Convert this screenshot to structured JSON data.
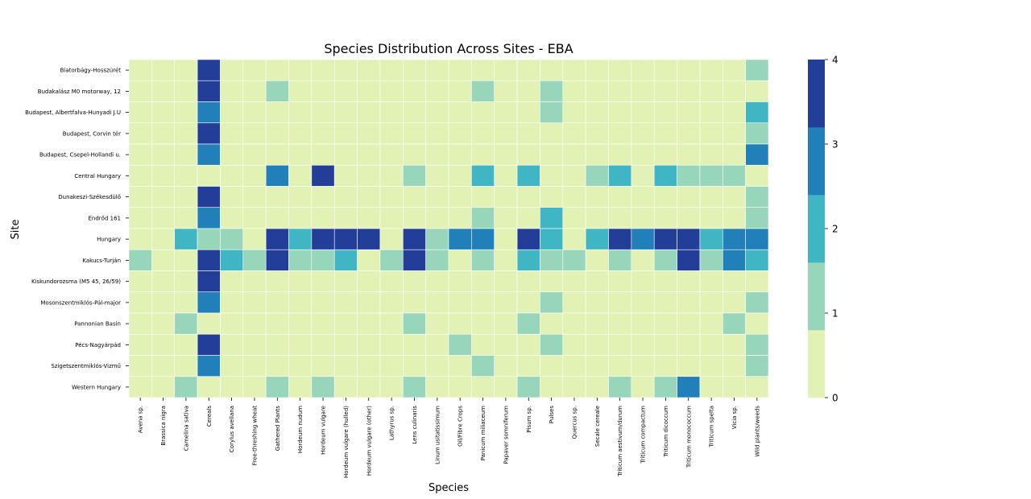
{
  "chart_data": {
    "type": "heatmap",
    "title": "Species Distribution Across Sites - EBA",
    "xlabel": "Species",
    "ylabel": "Site",
    "x_categories": [
      "Avena sp.",
      "Brassica nigra",
      "Camelina sativa",
      "Cereals",
      "Corylus avellana",
      "Free-threshing wheat",
      "Gathered Plants",
      "Hordeum nudum",
      "Hordeum vulgare",
      "Hordeum vulgare (hulled)",
      "Hordeum vulgare (other)",
      "Lathyrus sp.",
      "Lens culinaris",
      "Linum usitatissimum",
      "Oil/Fibre Crops",
      "Panicum miliaceum",
      "Papaver somniferum",
      "Pisum sp.",
      "Pulses",
      "Quercus sp.",
      "Secale cereale",
      "Triticum aestivum/durum",
      "Triticum compactum",
      "Triticum dicoccum",
      "Triticum monococcum",
      "Triticum spelta",
      "Vicia sp.",
      "Wild plants/weeds"
    ],
    "y_categories": [
      "Biatorbágy-Hosszúrét",
      "Budakalász M0 motorway, 12",
      "Budapest, Albertfalva-Hunyadi J.U",
      "Budapest, Corvin tér",
      "Budapest, Csepel-Hollandi u.",
      "Central Hungary",
      "Dunakeszi-Székesdülő",
      "Endrőd 161",
      "Hungary",
      "Kakucs-Turján",
      "Kiskundorozsma (M5 45, 26/59)",
      "Mosonszentmiklós-Pál-major",
      "Pannonian Basin",
      "Pécs-Nagyárpád",
      "Szigetszentmiklós-Vizmű",
      "Western Hungary"
    ],
    "values": [
      [
        0,
        0,
        0,
        4,
        0,
        0,
        0,
        0,
        0,
        0,
        0,
        0,
        0,
        0,
        0,
        0,
        0,
        0,
        0,
        0,
        0,
        0,
        0,
        0,
        0,
        0,
        0,
        1
      ],
      [
        0,
        0,
        0,
        4,
        0,
        0,
        1,
        0,
        0,
        0,
        0,
        0,
        0,
        0,
        0,
        1,
        0,
        0,
        1,
        0,
        0,
        0,
        0,
        0,
        0,
        0,
        0,
        0
      ],
      [
        0,
        0,
        0,
        3,
        0,
        0,
        0,
        0,
        0,
        0,
        0,
        0,
        0,
        0,
        0,
        0,
        0,
        0,
        1,
        0,
        0,
        0,
        0,
        0,
        0,
        0,
        0,
        2
      ],
      [
        0,
        0,
        0,
        4,
        0,
        0,
        0,
        0,
        0,
        0,
        0,
        0,
        0,
        0,
        0,
        0,
        0,
        0,
        0,
        0,
        0,
        0,
        0,
        0,
        0,
        0,
        0,
        1
      ],
      [
        0,
        0,
        0,
        3,
        0,
        0,
        0,
        0,
        0,
        0,
        0,
        0,
        0,
        0,
        0,
        0,
        0,
        0,
        0,
        0,
        0,
        0,
        0,
        0,
        0,
        0,
        0,
        3
      ],
      [
        0,
        0,
        0,
        0,
        0,
        0,
        3,
        0,
        4,
        0,
        0,
        0,
        1,
        0,
        0,
        2,
        0,
        2,
        0,
        0,
        1,
        2,
        0,
        2,
        1,
        1,
        1,
        0
      ],
      [
        0,
        0,
        0,
        4,
        0,
        0,
        0,
        0,
        0,
        0,
        0,
        0,
        0,
        0,
        0,
        0,
        0,
        0,
        0,
        0,
        0,
        0,
        0,
        0,
        0,
        0,
        0,
        1
      ],
      [
        0,
        0,
        0,
        3,
        0,
        0,
        0,
        0,
        0,
        0,
        0,
        0,
        0,
        0,
        0,
        1,
        0,
        0,
        2,
        0,
        0,
        0,
        0,
        0,
        0,
        0,
        0,
        1
      ],
      [
        0,
        0,
        2,
        1,
        1,
        0,
        4,
        2,
        4,
        4,
        4,
        0,
        4,
        1,
        3,
        3,
        0,
        4,
        2,
        0,
        2,
        4,
        3,
        4,
        4,
        2,
        3,
        3
      ],
      [
        1,
        0,
        0,
        4,
        2,
        1,
        4,
        1,
        1,
        2,
        0,
        1,
        4,
        1,
        0,
        1,
        0,
        2,
        1,
        1,
        0,
        1,
        0,
        1,
        4,
        1,
        3,
        2
      ],
      [
        0,
        0,
        0,
        4,
        0,
        0,
        0,
        0,
        0,
        0,
        0,
        0,
        0,
        0,
        0,
        0,
        0,
        0,
        0,
        0,
        0,
        0,
        0,
        0,
        0,
        0,
        0,
        0
      ],
      [
        0,
        0,
        0,
        3,
        0,
        0,
        0,
        0,
        0,
        0,
        0,
        0,
        0,
        0,
        0,
        0,
        0,
        0,
        1,
        0,
        0,
        0,
        0,
        0,
        0,
        0,
        0,
        1
      ],
      [
        0,
        0,
        1,
        0,
        0,
        0,
        0,
        0,
        0,
        0,
        0,
        0,
        1,
        0,
        0,
        0,
        0,
        1,
        0,
        0,
        0,
        0,
        0,
        0,
        0,
        0,
        1,
        0
      ],
      [
        0,
        0,
        0,
        4,
        0,
        0,
        0,
        0,
        0,
        0,
        0,
        0,
        0,
        0,
        1,
        0,
        0,
        0,
        1,
        0,
        0,
        0,
        0,
        0,
        0,
        0,
        0,
        1
      ],
      [
        0,
        0,
        0,
        3,
        0,
        0,
        0,
        0,
        0,
        0,
        0,
        0,
        0,
        0,
        0,
        1,
        0,
        0,
        0,
        0,
        0,
        0,
        0,
        0,
        0,
        0,
        0,
        1
      ],
      [
        0,
        0,
        1,
        0,
        0,
        0,
        1,
        0,
        1,
        0,
        0,
        0,
        1,
        0,
        0,
        0,
        0,
        1,
        0,
        0,
        0,
        1,
        0,
        1,
        3,
        0,
        0,
        0
      ]
    ],
    "colorbar": {
      "min": 0,
      "max": 4,
      "ticks": [
        "0",
        "1",
        "2",
        "3",
        "4"
      ],
      "colors": [
        "#e1f2b4",
        "#98d6bb",
        "#40b5c4",
        "#2180b9",
        "#233e99"
      ]
    },
    "grid": true,
    "legend": "colorbar-right"
  }
}
